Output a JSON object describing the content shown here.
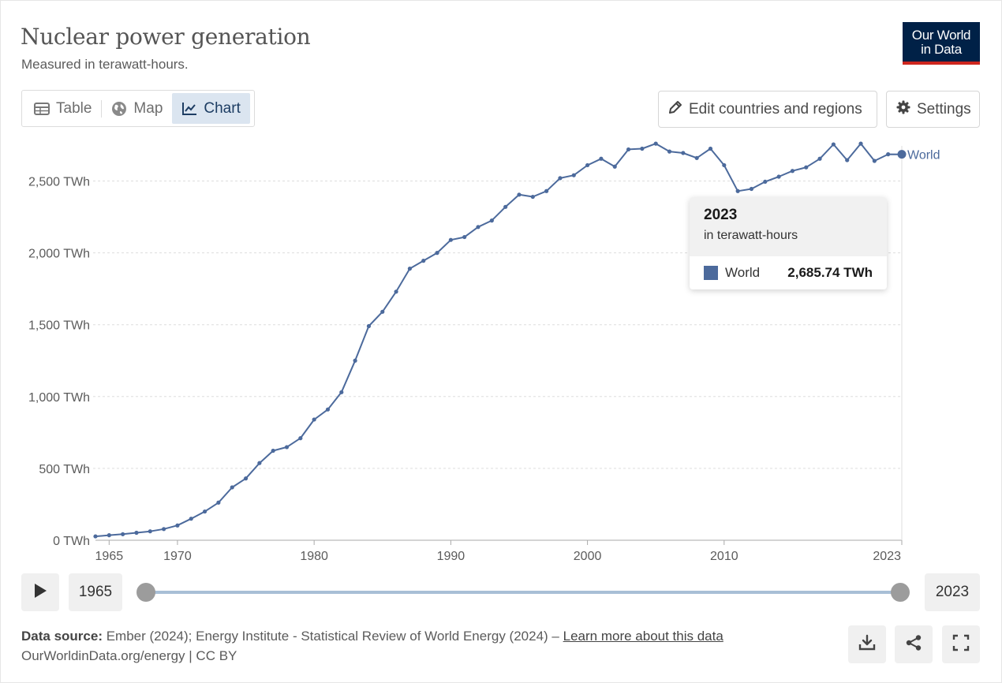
{
  "header": {
    "title": "Nuclear power generation",
    "subtitle": "Measured in terawatt-hours.",
    "logo_line1": "Our World",
    "logo_line2": "in Data"
  },
  "tabs": [
    {
      "label": "Table",
      "icon": "table-icon",
      "active": false
    },
    {
      "label": "Map",
      "icon": "globe-icon",
      "active": false
    },
    {
      "label": "Chart",
      "icon": "line-chart-icon",
      "active": true
    }
  ],
  "toolbar": {
    "edit_label": "Edit countries and regions",
    "settings_label": "Settings"
  },
  "tooltip": {
    "year": "2023",
    "unit": "in terawatt-hours",
    "series_name": "World",
    "value": "2,685.74 TWh"
  },
  "timeline": {
    "start_year": "1965",
    "end_year": "2023"
  },
  "footer": {
    "source_label": "Data source:",
    "source_text": "Ember (2024); Energy Institute - Statistical Review of World Energy (2024) –",
    "learn_more": "Learn more about this data",
    "credit": "OurWorldinData.org/energy | CC BY"
  },
  "colors": {
    "series": "#4c6a9c",
    "grid": "#dddddd",
    "logo_bg": "#002147",
    "logo_bar": "#ce261e",
    "active_tab": "#dbe5f0"
  },
  "chart_data": {
    "type": "line",
    "title": "Nuclear power generation",
    "subtitle": "Measured in terawatt-hours.",
    "xlabel": "",
    "ylabel": "",
    "xlim": [
      1964,
      2023
    ],
    "ylim": [
      0,
      2750
    ],
    "y_ticks": [
      0,
      500,
      1000,
      1500,
      2000,
      2500
    ],
    "y_tick_labels": [
      "0 TWh",
      "500 TWh",
      "1,000 TWh",
      "1,500 TWh",
      "2,000 TWh",
      "2,500 TWh"
    ],
    "x_ticks": [
      1965,
      1970,
      1980,
      1990,
      2000,
      2010,
      2023
    ],
    "x_tick_labels": [
      "1965",
      "1970",
      "1980",
      "1990",
      "2000",
      "2010",
      "2023"
    ],
    "grid": "horizontal dashed",
    "legend": "end-of-line label",
    "series": [
      {
        "name": "World",
        "x": [
          1964,
          1965,
          1966,
          1967,
          1968,
          1969,
          1970,
          1971,
          1972,
          1973,
          1974,
          1975,
          1976,
          1977,
          1978,
          1979,
          1980,
          1981,
          1982,
          1983,
          1984,
          1985,
          1986,
          1987,
          1988,
          1989,
          1990,
          1991,
          1992,
          1993,
          1994,
          1995,
          1996,
          1997,
          1998,
          1999,
          2000,
          2001,
          2002,
          2003,
          2004,
          2005,
          2006,
          2007,
          2008,
          2009,
          2010,
          2011,
          2012,
          2013,
          2014,
          2015,
          2016,
          2017,
          2018,
          2019,
          2020,
          2021,
          2022,
          2023
        ],
        "values": [
          27,
          35,
          42,
          52,
          62,
          78,
          103,
          150,
          200,
          262,
          368,
          430,
          537,
          623,
          648,
          710,
          840,
          910,
          1030,
          1250,
          1490,
          1590,
          1730,
          1890,
          1945,
          2000,
          2090,
          2110,
          2180,
          2225,
          2320,
          2405,
          2390,
          2430,
          2520,
          2540,
          2610,
          2655,
          2600,
          2720,
          2725,
          2760,
          2705,
          2695,
          2660,
          2725,
          2610,
          2430,
          2445,
          2495,
          2530,
          2570,
          2595,
          2655,
          2755,
          2645,
          2760,
          2640,
          2686,
          2685.74
        ]
      }
    ]
  }
}
